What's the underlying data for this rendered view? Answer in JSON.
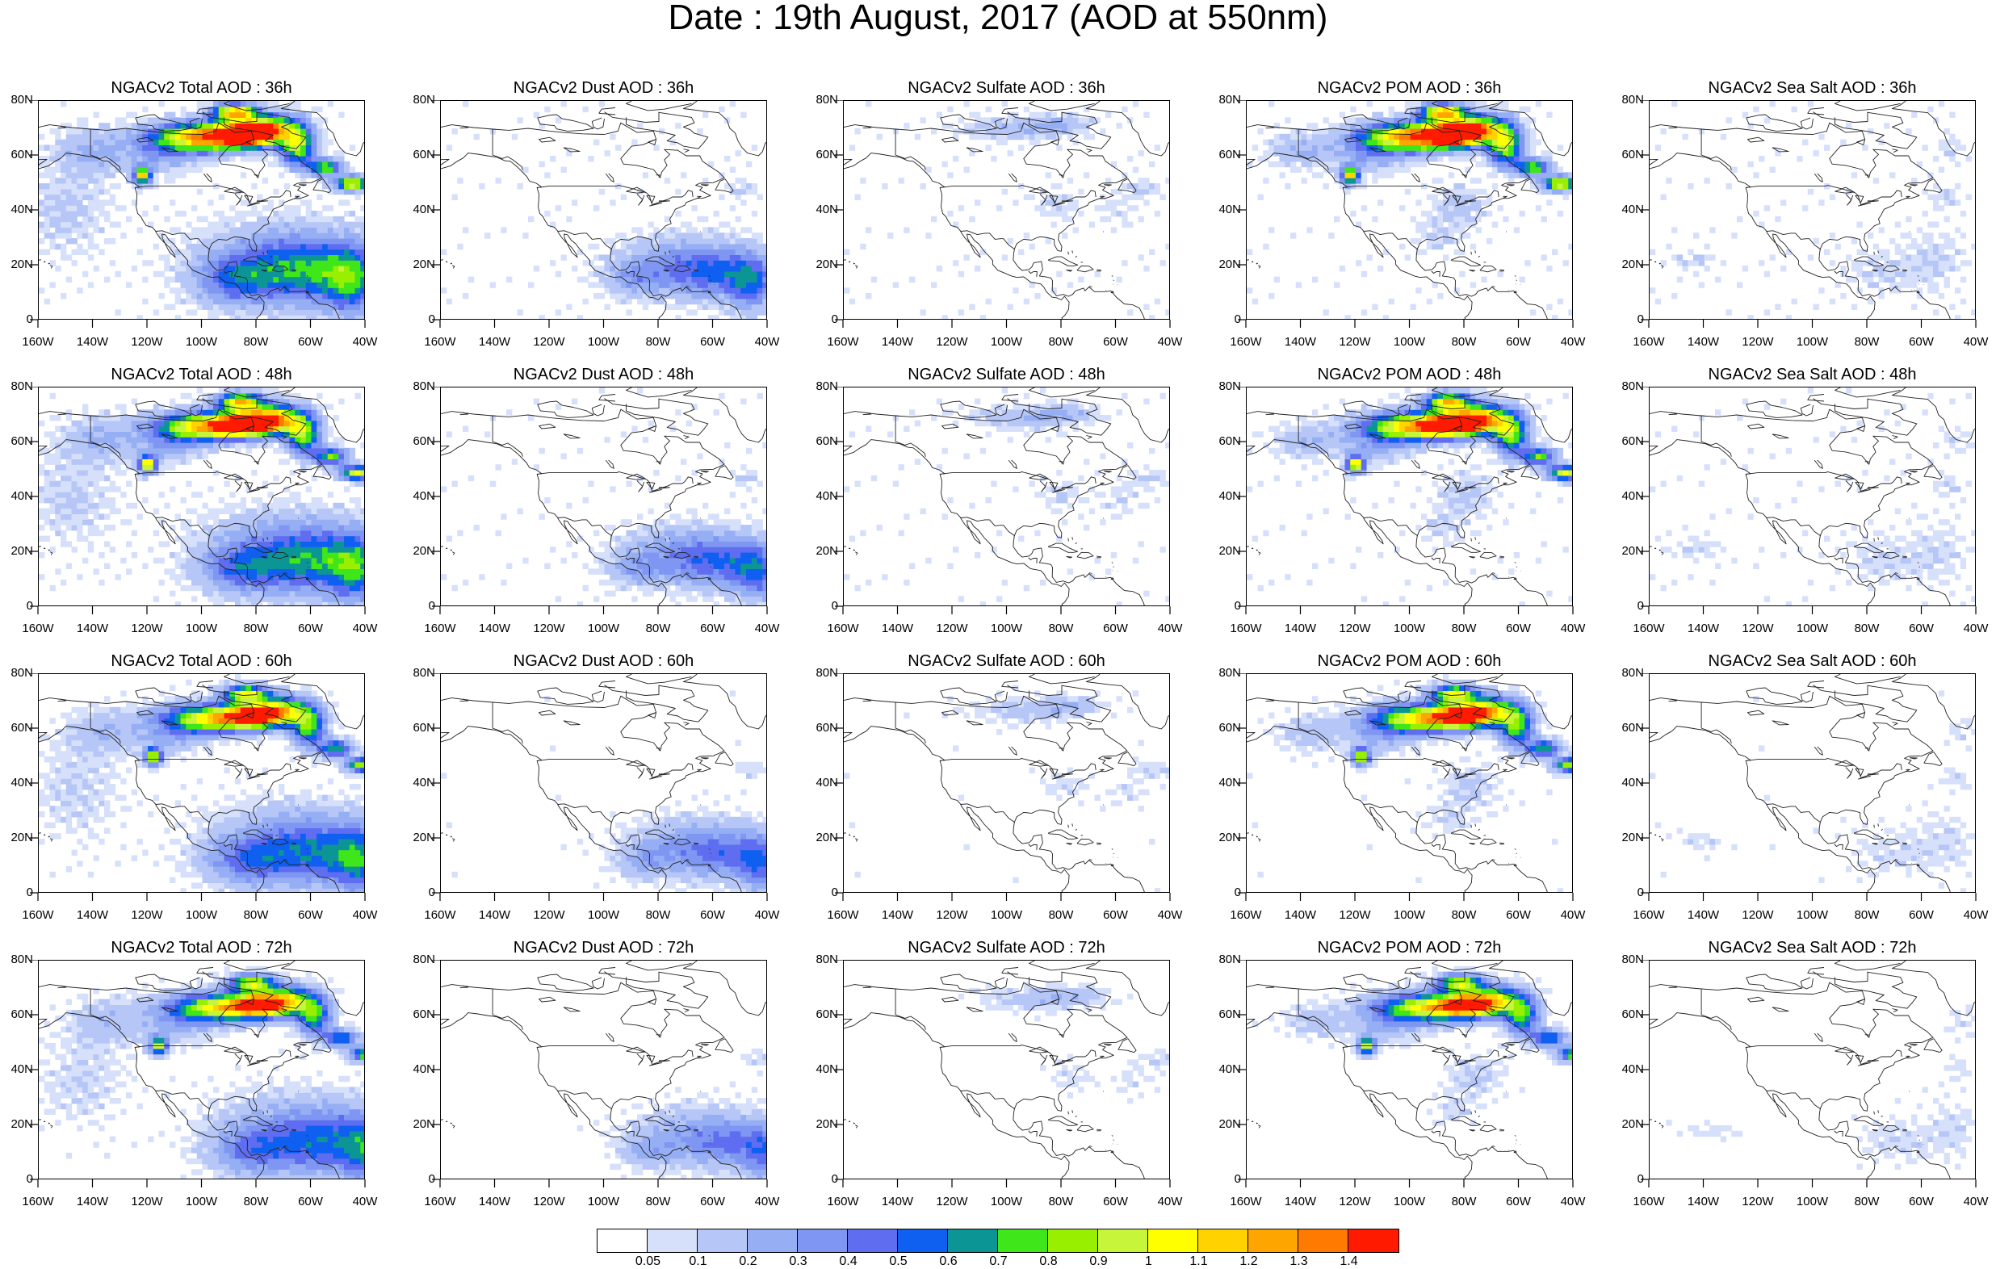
{
  "title": "Date : 19th August, 2017 (AOD at 550nm)",
  "y_ticks": [
    "80N",
    "60N",
    "40N",
    "20N",
    "0"
  ],
  "x_ticks": [
    "160W",
    "140W",
    "120W",
    "100W",
    "80W",
    "60W",
    "40W"
  ],
  "colorbar": {
    "colors": [
      "#ffffff",
      "#d6e0fb",
      "#b6c6f6",
      "#96aef4",
      "#7f96f2",
      "#5f6ef0",
      "#0f5ff0",
      "#0c9595",
      "#3ee61a",
      "#98f000",
      "#c6f53a",
      "#ffff00",
      "#ffd200",
      "#ffa500",
      "#ff7a00",
      "#ff1a00"
    ],
    "labels": [
      "0.05",
      "0.1",
      "0.2",
      "0.3",
      "0.4",
      "0.5",
      "0.6",
      "0.7",
      "0.8",
      "0.9",
      "1",
      "1.1",
      "1.2",
      "1.3",
      "1.4"
    ]
  },
  "panels": [
    {
      "title": "NGACv2 Total AOD : 36h",
      "species": "total",
      "hour": 36
    },
    {
      "title": "NGACv2 Dust AOD : 36h",
      "species": "dust",
      "hour": 36
    },
    {
      "title": "NGACv2 Sulfate AOD : 36h",
      "species": "sulfate",
      "hour": 36
    },
    {
      "title": "NGACv2 POM AOD : 36h",
      "species": "pom",
      "hour": 36
    },
    {
      "title": "NGACv2 Sea Salt AOD : 36h",
      "species": "seasalt",
      "hour": 36
    },
    {
      "title": "NGACv2 Total AOD : 48h",
      "species": "total",
      "hour": 48
    },
    {
      "title": "NGACv2 Dust AOD : 48h",
      "species": "dust",
      "hour": 48
    },
    {
      "title": "NGACv2 Sulfate AOD : 48h",
      "species": "sulfate",
      "hour": 48
    },
    {
      "title": "NGACv2 POM AOD : 48h",
      "species": "pom",
      "hour": 48
    },
    {
      "title": "NGACv2 Sea Salt AOD : 48h",
      "species": "seasalt",
      "hour": 48
    },
    {
      "title": "NGACv2 Total AOD : 60h",
      "species": "total",
      "hour": 60
    },
    {
      "title": "NGACv2 Dust AOD : 60h",
      "species": "dust",
      "hour": 60
    },
    {
      "title": "NGACv2 Sulfate AOD : 60h",
      "species": "sulfate",
      "hour": 60
    },
    {
      "title": "NGACv2 POM AOD : 60h",
      "species": "pom",
      "hour": 60
    },
    {
      "title": "NGACv2 Sea Salt AOD : 60h",
      "species": "seasalt",
      "hour": 60
    },
    {
      "title": "NGACv2 Total AOD : 72h",
      "species": "total",
      "hour": 72
    },
    {
      "title": "NGACv2 Dust AOD : 72h",
      "species": "dust",
      "hour": 72
    },
    {
      "title": "NGACv2 Sulfate AOD : 72h",
      "species": "sulfate",
      "hour": 72
    },
    {
      "title": "NGACv2 POM AOD : 72h",
      "species": "pom",
      "hour": 72
    },
    {
      "title": "NGACv2 Sea Salt  AOD : 72h",
      "species": "seasalt",
      "hour": 72
    }
  ]
}
